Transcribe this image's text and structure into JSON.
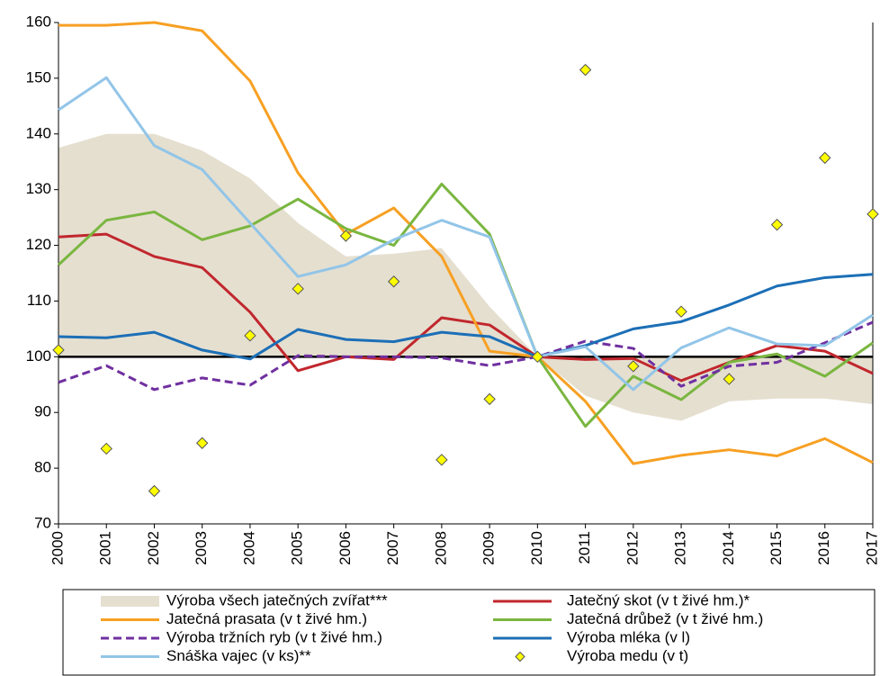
{
  "chart_data": {
    "type": "line",
    "categories": [
      "2000",
      "2001",
      "2002",
      "2003",
      "2004",
      "2005",
      "2006",
      "2007",
      "2008",
      "2009",
      "2010",
      "2011",
      "2012",
      "2013",
      "2014",
      "2015",
      "2016",
      "2017"
    ],
    "ylim": [
      70,
      160
    ],
    "yticks": [
      70,
      80,
      90,
      100,
      110,
      120,
      130,
      140,
      150,
      160
    ],
    "series": [
      {
        "name": "Výroba všech jatečných zvířat***",
        "style": "area",
        "baseline": 100,
        "color": "#e5dfd0",
        "values": [
          137.5,
          140,
          140,
          137,
          132,
          124,
          118,
          118.5,
          119.5,
          109,
          100,
          93,
          90,
          88.5,
          92,
          92.5,
          92.5,
          91.5
        ]
      },
      {
        "name": "Jatečný skot  (v t živé hm.)*",
        "style": "line",
        "color": "#c1272d",
        "values": [
          121.5,
          122,
          118,
          116,
          108,
          97.5,
          100,
          99.5,
          107,
          105.7,
          100,
          99.5,
          99.7,
          95.7,
          99,
          102,
          101,
          97
        ]
      },
      {
        "name": "Jatečná prasata (v t živé hm.)",
        "style": "line",
        "color": "#f7a023",
        "values": [
          159.5,
          159.5,
          160,
          158.5,
          149.5,
          133,
          122,
          126.7,
          118,
          101,
          100,
          92,
          80.8,
          82.3,
          83.3,
          82.2,
          85.3,
          81
        ]
      },
      {
        "name": "Jatečná drůbež (v t živé hm.)",
        "style": "line",
        "color": "#7ab640",
        "values": [
          116.5,
          124.5,
          126,
          121,
          123.5,
          128.3,
          123,
          120,
          131,
          122,
          100,
          87.5,
          96.5,
          92.3,
          99,
          100.5,
          96.5,
          102.5
        ]
      },
      {
        "name": "Výroba tržních ryb (v t živé hm.)",
        "style": "dashed",
        "color": "#7030a0",
        "values": [
          95.4,
          98.4,
          94.1,
          96.2,
          94.9,
          100.2,
          100,
          100,
          99.8,
          98.4,
          100,
          102.8,
          101.5,
          94.7,
          98.3,
          99,
          102.5,
          106.2
        ]
      },
      {
        "name": "Výroba mléka (v l)",
        "style": "line",
        "color": "#1c6fb6",
        "values": [
          103.6,
          103.4,
          104.4,
          101.2,
          99.6,
          104.9,
          103.1,
          102.7,
          104.4,
          103.6,
          100,
          102,
          105,
          106.3,
          109.3,
          112.7,
          114.2,
          114.8
        ]
      },
      {
        "name": "Snáška vajec (v ks)**",
        "style": "line",
        "color": "#92c5e8",
        "values": [
          144.3,
          150.1,
          137.9,
          133.6,
          124,
          114.4,
          116.5,
          121,
          124.5,
          121.5,
          100,
          101.8,
          94.1,
          101.6,
          105.2,
          102.3,
          102,
          107.5
        ]
      },
      {
        "name": "Výroba medu (v t)",
        "style": "markers",
        "color": "#ffff00",
        "values": [
          101.2,
          83.5,
          75.9,
          84.5,
          103.8,
          112.2,
          121.7,
          113.5,
          81.5,
          92.4,
          100,
          151.5,
          98.3,
          108.1,
          96,
          123.7,
          135.7,
          125.6
        ]
      }
    ]
  }
}
